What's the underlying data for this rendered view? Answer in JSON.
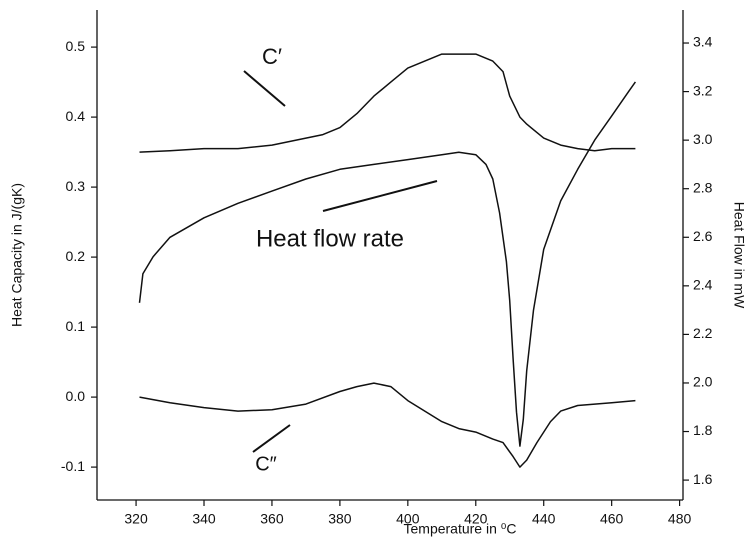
{
  "chart_data": {
    "type": "line",
    "x_label": "Temperature in ⁰C",
    "y_label": "Heat Capacity in J/(gK)",
    "y2_label": "Heat Flow in mW",
    "annotations": [
      "C′",
      "Heat flow rate",
      "C″"
    ],
    "xlim": [
      308.5,
      481
    ],
    "xticks": [
      320,
      340,
      360,
      380,
      400,
      420,
      440,
      460,
      480
    ],
    "ylim": [
      -0.147,
      0.553
    ],
    "yticks": [
      -0.1,
      {
        "value": 0,
        "label": "0.0"
      },
      0.1,
      0.2,
      0.3,
      0.4,
      0.5
    ],
    "y2lim": [
      1.518,
      3.536
    ],
    "y2ticks": [
      1.6,
      1.8,
      {
        "value": 2,
        "label": "2.0"
      },
      2.2,
      2.4,
      2.6,
      2.8,
      {
        "value": 3,
        "label": "3.0"
      },
      3.2,
      3.4
    ],
    "series": [
      {
        "name": "C′",
        "color": "#111111",
        "axis": "y",
        "x": [
          321,
          330,
          340,
          350,
          360,
          370,
          375,
          380,
          385,
          390,
          395,
          400,
          405,
          410,
          415,
          420,
          425,
          428,
          430,
          433,
          435,
          440,
          445,
          450,
          455,
          460,
          467
        ],
        "values": [
          0.35,
          0.352,
          0.355,
          0.355,
          0.36,
          0.37,
          0.375,
          0.385,
          0.405,
          0.43,
          0.45,
          0.47,
          0.48,
          0.49,
          0.49,
          0.49,
          0.48,
          0.465,
          0.43,
          0.4,
          0.39,
          0.37,
          0.36,
          0.355,
          0.352,
          0.355,
          0.355
        ]
      },
      {
        "name": "Heat flow rate",
        "color": "#111111",
        "axis": "y2",
        "x": [
          321,
          322,
          325,
          330,
          340,
          350,
          360,
          370,
          380,
          390,
          400,
          410,
          415,
          420,
          423,
          425,
          427,
          429,
          430,
          431,
          432,
          433,
          434,
          435,
          437,
          440,
          445,
          450,
          455,
          460,
          465,
          467
        ],
        "values": [
          2.33,
          2.45,
          2.52,
          2.6,
          2.68,
          2.74,
          2.79,
          2.84,
          2.88,
          2.9,
          2.92,
          2.94,
          2.95,
          2.94,
          2.9,
          2.84,
          2.7,
          2.5,
          2.34,
          2.1,
          1.88,
          1.74,
          1.85,
          2.05,
          2.3,
          2.55,
          2.75,
          2.88,
          3.0,
          3.1,
          3.2,
          3.24
        ]
      },
      {
        "name": "C″",
        "color": "#111111",
        "axis": "y",
        "x": [
          321,
          330,
          340,
          350,
          360,
          370,
          380,
          385,
          390,
          395,
          400,
          405,
          410,
          415,
          420,
          425,
          428,
          431,
          433,
          435,
          438,
          442,
          445,
          450,
          455,
          460,
          467
        ],
        "values": [
          0.0,
          -0.008,
          -0.015,
          -0.02,
          -0.018,
          -0.01,
          0.008,
          0.015,
          0.02,
          0.015,
          -0.005,
          -0.02,
          -0.035,
          -0.045,
          -0.05,
          -0.06,
          -0.065,
          -0.085,
          -0.1,
          -0.09,
          -0.065,
          -0.035,
          -0.02,
          -0.012,
          -0.01,
          -0.008,
          -0.005
        ]
      }
    ]
  }
}
